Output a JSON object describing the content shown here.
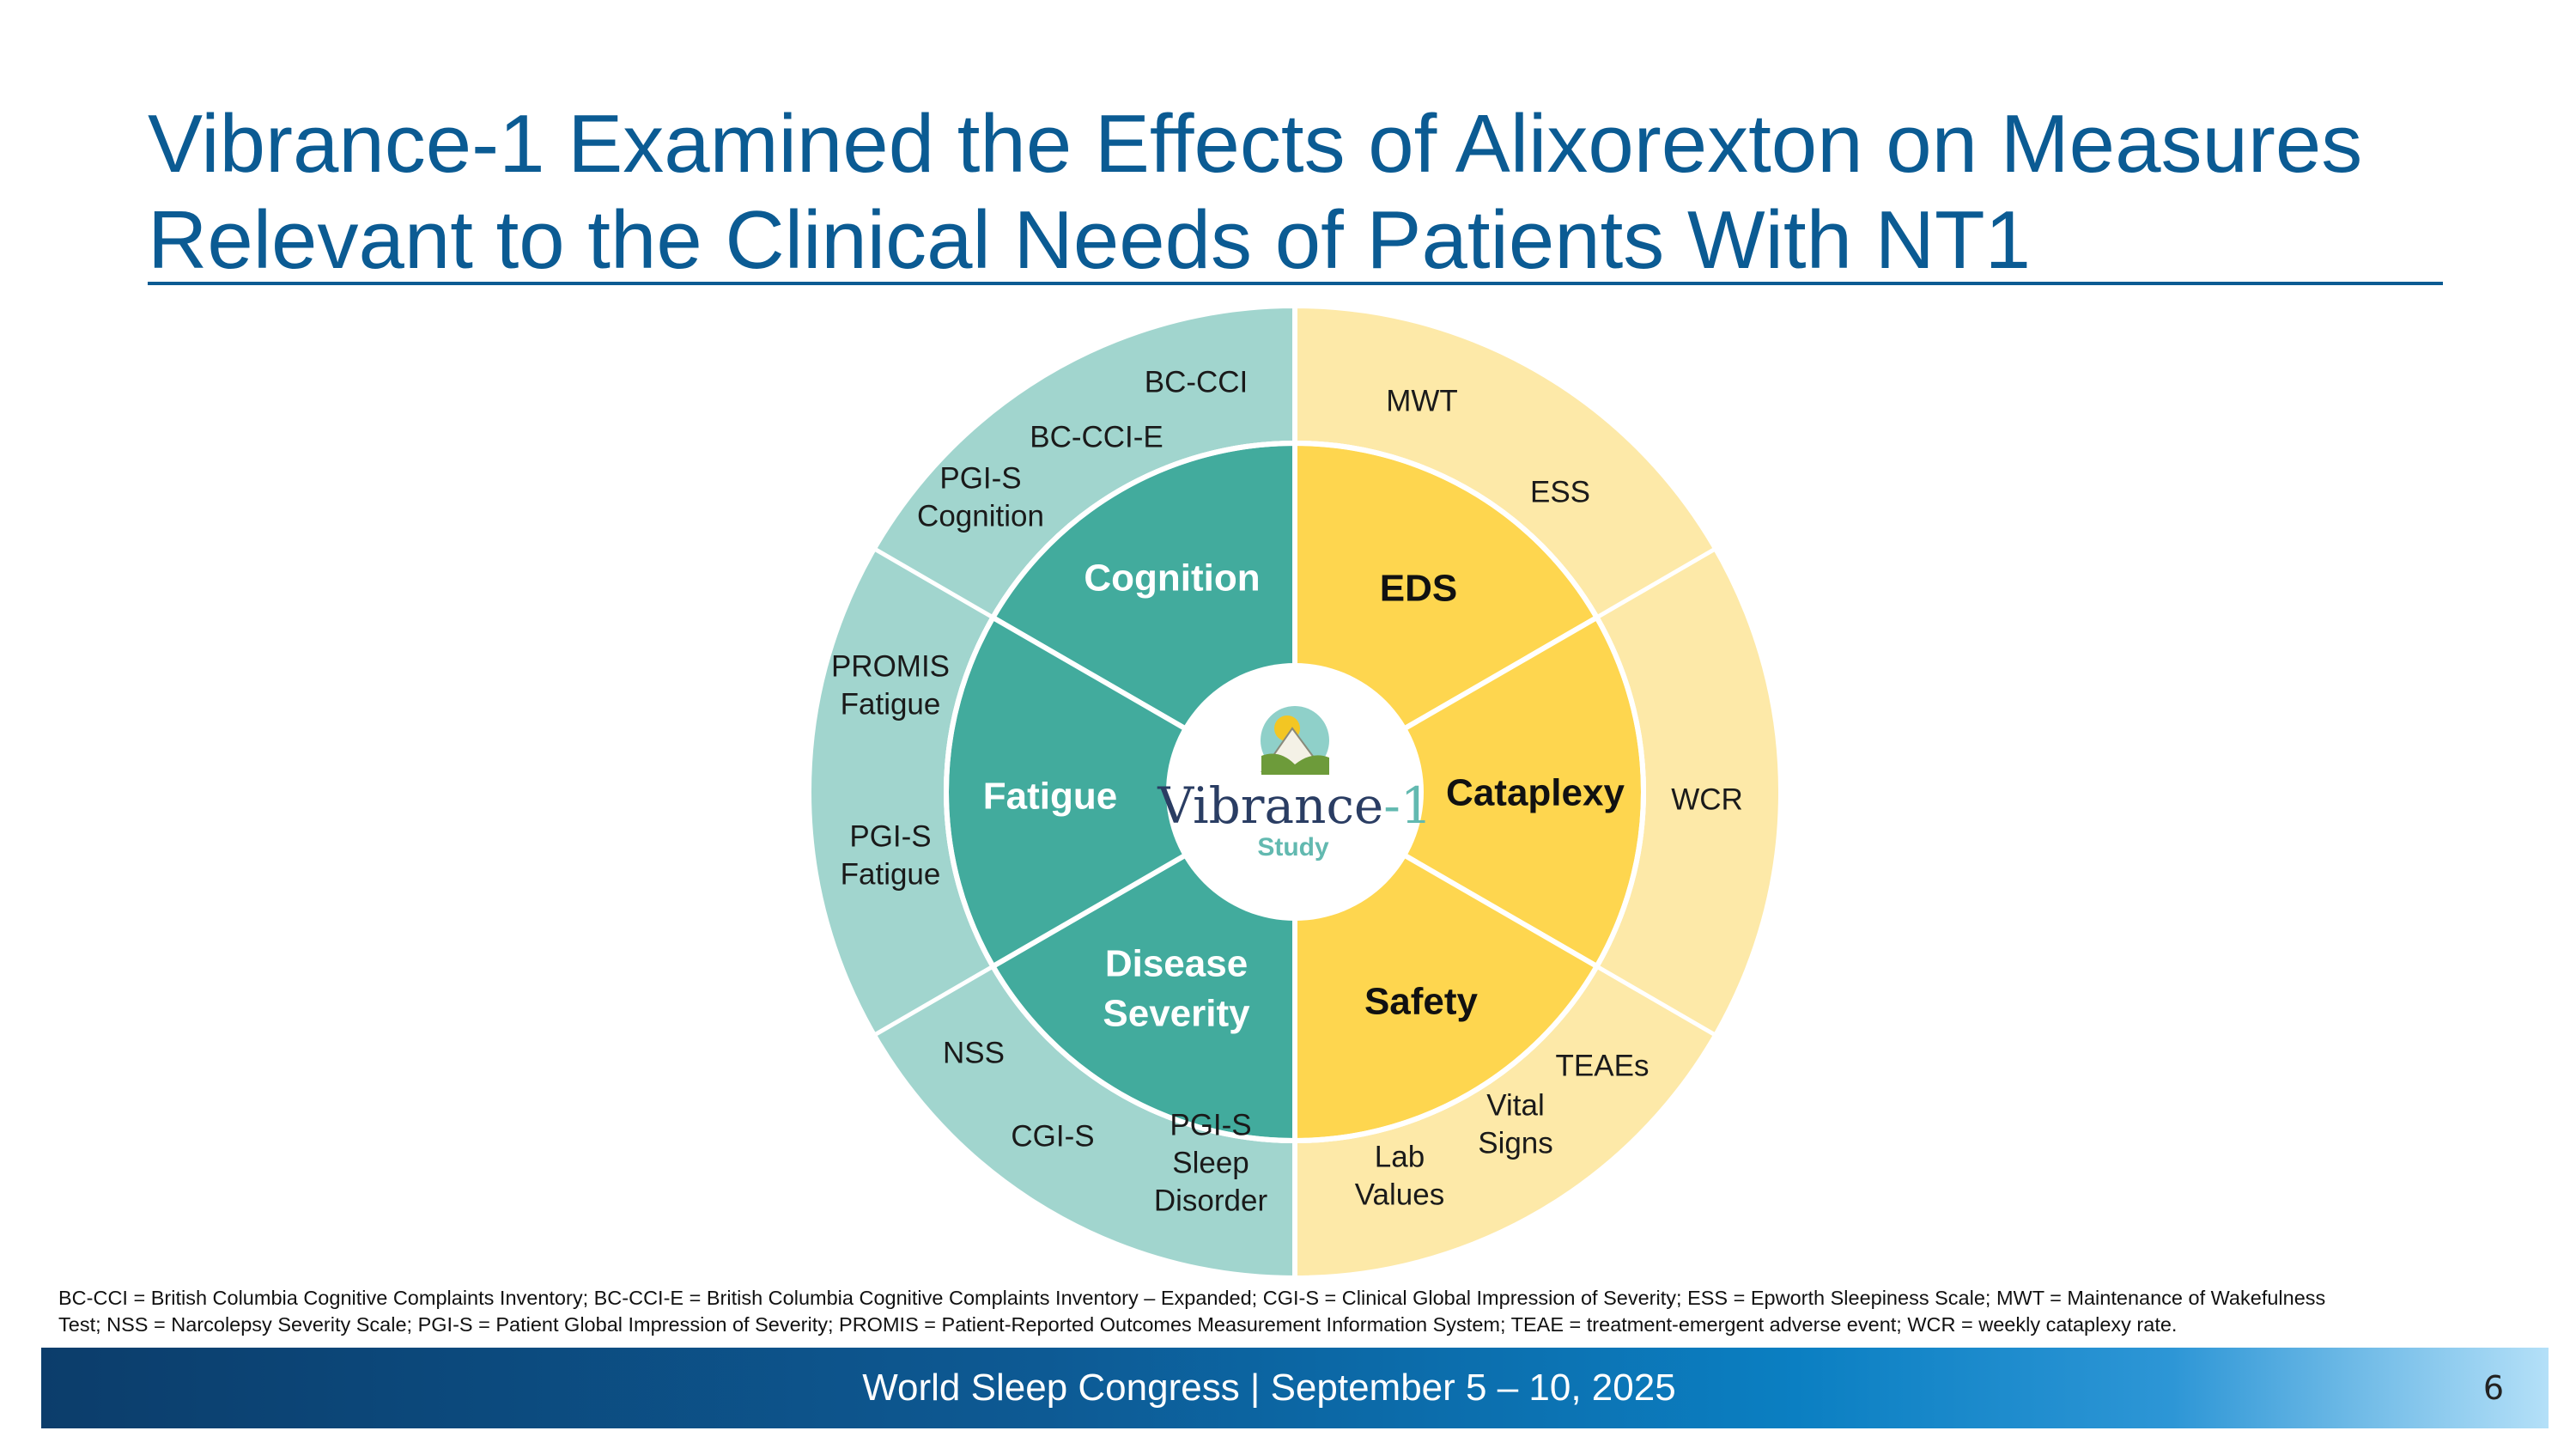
{
  "slide": {
    "title_line1": "Vibrance-1 Examined the Effects of Alixorexton on Measures",
    "title_line2": "Relevant to the Clinical Needs of Patients With NT1"
  },
  "colors": {
    "title_blue": "#0b5b93",
    "teal_inner": "#42ab9d",
    "teal_outer": "#a1d5ce",
    "yellow_inner": "#fed64f",
    "yellow_outer": "#fde9a8"
  },
  "wheel": {
    "center": {
      "name": "Vibrance-1",
      "subtitle": "Study",
      "logo_icon": "mountain-sun-icon"
    },
    "domains": [
      {
        "label_lines": [
          "Cognition"
        ],
        "theme": "teal"
      },
      {
        "label_lines": [
          "EDS"
        ],
        "theme": "yellow"
      },
      {
        "label_lines": [
          "Cataplexy"
        ],
        "theme": "yellow"
      },
      {
        "label_lines": [
          "Safety"
        ],
        "theme": "yellow"
      },
      {
        "label_lines": [
          "Disease",
          "Severity"
        ],
        "theme": "teal"
      },
      {
        "label_lines": [
          "Fatigue"
        ],
        "theme": "teal"
      }
    ],
    "measures": [
      {
        "lines": [
          "BC-CCI"
        ]
      },
      {
        "lines": [
          "BC-CCI-E"
        ]
      },
      {
        "lines": [
          "PGI-S",
          "Cognition"
        ]
      },
      {
        "lines": [
          "MWT"
        ]
      },
      {
        "lines": [
          "ESS"
        ]
      },
      {
        "lines": [
          "WCR"
        ]
      },
      {
        "lines": [
          "TEAEs"
        ]
      },
      {
        "lines": [
          "Vital",
          "Signs"
        ]
      },
      {
        "lines": [
          "Lab",
          "Values"
        ]
      },
      {
        "lines": [
          "PGI-S",
          "Sleep",
          "Disorder"
        ]
      },
      {
        "lines": [
          "CGI-S"
        ]
      },
      {
        "lines": [
          "NSS"
        ]
      },
      {
        "lines": [
          "PGI-S",
          "Fatigue"
        ]
      },
      {
        "lines": [
          "PROMIS",
          "Fatigue"
        ]
      }
    ]
  },
  "abbreviations": {
    "line1": "BC-CCI = British Columbia Cognitive Complaints Inventory; BC-CCI-E = British Columbia Cognitive Complaints Inventory – Expanded; CGI-S = Clinical Global Impression of Severity; ESS = Epworth Sleepiness Scale; MWT = Maintenance of Wakefulness",
    "line2": "Test; NSS = Narcolepsy Severity Scale; PGI-S = Patient Global Impression of Severity; PROMIS = Patient-Reported Outcomes Measurement Information System; TEAE = treatment-emergent adverse event; WCR = weekly cataplexy rate."
  },
  "footer": {
    "text": "World Sleep Congress | September 5 – 10, 2025",
    "page_number": "6"
  }
}
